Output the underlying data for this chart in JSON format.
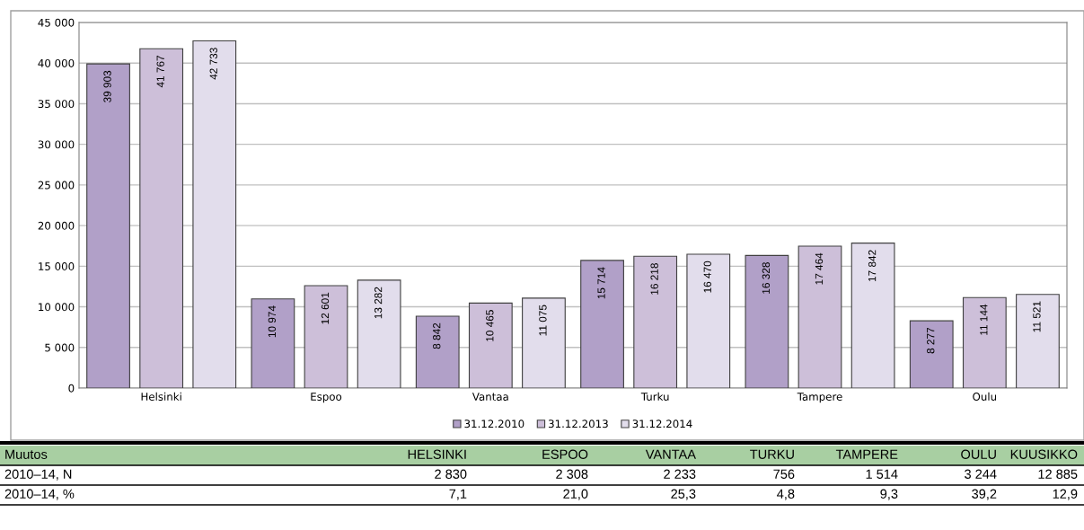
{
  "chart_data": {
    "type": "bar",
    "categories": [
      "Helsinki",
      "Espoo",
      "Vantaa",
      "Turku",
      "Tampere",
      "Oulu"
    ],
    "series": [
      {
        "name": "31.12.2010",
        "color": "#b1a0c8",
        "values": [
          39903,
          10974,
          8842,
          15714,
          16328,
          8277
        ],
        "value_labels": [
          "39 903",
          "10 974",
          "8 842",
          "15 714",
          "16 328",
          "8 277"
        ]
      },
      {
        "name": "31.12.2013",
        "color": "#cdbfd9",
        "values": [
          41767,
          12601,
          10465,
          16218,
          17464,
          11144
        ],
        "value_labels": [
          "41 767",
          "12 601",
          "10 465",
          "16 218",
          "17 464",
          "11 144"
        ]
      },
      {
        "name": "31.12.2014",
        "color": "#e2ddec",
        "values": [
          42733,
          13282,
          11075,
          16470,
          17842,
          11521
        ],
        "value_labels": [
          "42 733",
          "13 282",
          "11 075",
          "16 470",
          "17 842",
          "11 521"
        ]
      }
    ],
    "ylim": [
      0,
      45000
    ],
    "yticks": [
      {
        "value": 0,
        "label": "0"
      },
      {
        "value": 5000,
        "label": "5 000"
      },
      {
        "value": 10000,
        "label": "10 000"
      },
      {
        "value": 15000,
        "label": "15 000"
      },
      {
        "value": 20000,
        "label": "20 000"
      },
      {
        "value": 25000,
        "label": "25 000"
      },
      {
        "value": 30000,
        "label": "30 000"
      },
      {
        "value": 35000,
        "label": "35 000"
      },
      {
        "value": 40000,
        "label": "40 000"
      },
      {
        "value": 45000,
        "label": "45 000"
      }
    ],
    "grid": "y",
    "legend": "bottom",
    "annotations": [
      "Muutos",
      "HELSINKI",
      "ESPOO",
      "VANTAA",
      "TURKU",
      "TAMPERE",
      "OULU",
      "KUUSIKKO",
      "2010–14, N",
      "2 830",
      "2 308",
      "2 233",
      "756",
      "1 514",
      "3 244",
      "12 885",
      "2010–14, %",
      "7,1",
      "21,0",
      "25,3",
      "4,8",
      "9,3",
      "39,2",
      "12,9"
    ]
  }
}
